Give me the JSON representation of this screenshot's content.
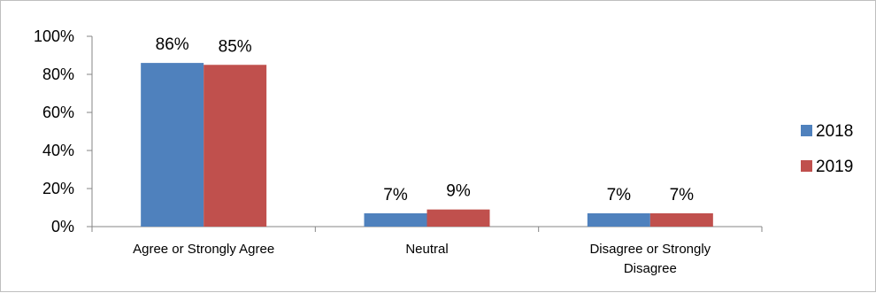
{
  "chart_data": {
    "type": "bar",
    "title": "",
    "xlabel": "",
    "ylabel": "",
    "categories": [
      [
        "Agree or Strongly Agree"
      ],
      [
        "Neutral"
      ],
      [
        "Disagree or Strongly",
        "Disagree"
      ]
    ],
    "series": [
      {
        "name": "2018",
        "color": "#4f81bd",
        "values": [
          86,
          7,
          7
        ]
      },
      {
        "name": "2019",
        "color": "#c0504d",
        "values": [
          85,
          9,
          7
        ]
      }
    ],
    "ylim": [
      0,
      100
    ],
    "yticks": [
      0,
      20,
      40,
      60,
      80,
      100
    ],
    "ytick_labels": [
      "0%",
      "20%",
      "40%",
      "60%",
      "80%",
      "100%"
    ],
    "value_suffix": "%",
    "grid": false,
    "legend_position": "right"
  }
}
